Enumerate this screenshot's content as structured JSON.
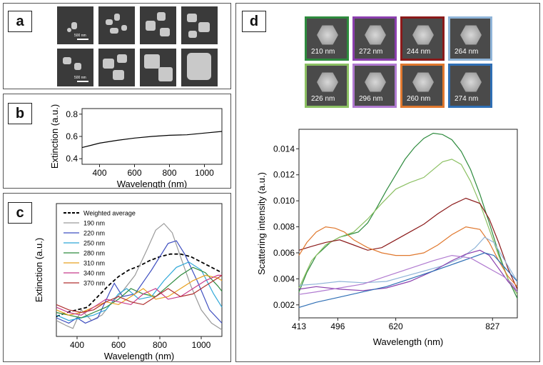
{
  "panels": {
    "a": {
      "label": "a",
      "scale_bar_top": "500 nm",
      "scale_bar_bottom": "500 nm"
    },
    "b": {
      "label": "b"
    },
    "c": {
      "label": "c"
    },
    "d": {
      "label": "d",
      "tiles": [
        {
          "size": "210 nm",
          "color": "#2e8b3e"
        },
        {
          "size": "272 nm",
          "color": "#8b3fae"
        },
        {
          "size": "244 nm",
          "color": "#8b1a1a"
        },
        {
          "size": "264 nm",
          "color": "#8fb4d8"
        },
        {
          "size": "226 nm",
          "color": "#8cc063"
        },
        {
          "size": "296 nm",
          "color": "#b07ad0"
        },
        {
          "size": "260 nm",
          "color": "#e0782e"
        },
        {
          "size": "274 nm",
          "color": "#2f6fb5"
        }
      ]
    }
  },
  "chart_data": [
    {
      "panel": "b",
      "type": "line",
      "title": "",
      "xlabel": "Wavelength (nm)",
      "ylabel": "Extinction (a.u.)",
      "xlim": [
        300,
        1100
      ],
      "ylim": [
        0.35,
        0.85
      ],
      "xticks": [
        400,
        600,
        800,
        1000
      ],
      "yticks": [
        0.4,
        0.6,
        0.8
      ],
      "ytick_labels": [
        "0.4",
        "0.6",
        "0.8"
      ],
      "series": [
        {
          "name": "extinction",
          "color": "#000000",
          "x": [
            300,
            350,
            400,
            500,
            600,
            700,
            800,
            900,
            1000,
            1100
          ],
          "y": [
            0.5,
            0.52,
            0.54,
            0.565,
            0.585,
            0.6,
            0.61,
            0.615,
            0.63,
            0.645
          ]
        }
      ]
    },
    {
      "panel": "c",
      "type": "line",
      "title": "",
      "xlabel": "Wavelength (nm)",
      "ylabel": "Extinction (a.u.)",
      "xlim": [
        300,
        1100
      ],
      "ylim": [
        0,
        1
      ],
      "xticks": [
        400,
        600,
        800,
        1000
      ],
      "legend": [
        "Weighted average",
        "190 nm",
        "220 nm",
        "250 nm",
        "280 nm",
        "310 nm",
        "340 nm",
        "370 nm"
      ],
      "series": [
        {
          "name": "Weighted average",
          "color": "#000000",
          "dashed": true,
          "x": [
            300,
            350,
            400,
            450,
            500,
            550,
            600,
            650,
            700,
            750,
            800,
            850,
            900,
            950,
            1000,
            1050,
            1100
          ],
          "y": [
            0.15,
            0.18,
            0.2,
            0.22,
            0.3,
            0.38,
            0.45,
            0.5,
            0.53,
            0.57,
            0.6,
            0.62,
            0.62,
            0.6,
            0.56,
            0.52,
            0.48
          ]
        },
        {
          "name": "190 nm",
          "color": "#9a9a9a",
          "x": [
            300,
            350,
            380,
            420,
            470,
            520,
            560,
            620,
            680,
            740,
            780,
            820,
            860,
            900,
            950,
            1000,
            1050,
            1100
          ],
          "y": [
            0.12,
            0.08,
            0.06,
            0.2,
            0.12,
            0.16,
            0.24,
            0.34,
            0.46,
            0.66,
            0.8,
            0.85,
            0.78,
            0.6,
            0.38,
            0.2,
            0.1,
            0.05
          ]
        },
        {
          "name": "220 nm",
          "color": "#3f4fc0",
          "x": [
            300,
            360,
            400,
            440,
            500,
            560,
            580,
            620,
            680,
            760,
            840,
            880,
            920,
            980,
            1040,
            1100
          ],
          "y": [
            0.14,
            0.1,
            0.14,
            0.1,
            0.14,
            0.34,
            0.4,
            0.3,
            0.32,
            0.5,
            0.7,
            0.72,
            0.62,
            0.42,
            0.2,
            0.1
          ]
        },
        {
          "name": "250 nm",
          "color": "#2fa8d8",
          "x": [
            300,
            360,
            420,
            480,
            540,
            600,
            640,
            700,
            760,
            820,
            880,
            940,
            1000,
            1060,
            1100
          ],
          "y": [
            0.16,
            0.12,
            0.14,
            0.16,
            0.2,
            0.32,
            0.36,
            0.28,
            0.3,
            0.42,
            0.52,
            0.56,
            0.5,
            0.32,
            0.22
          ]
        },
        {
          "name": "280 nm",
          "color": "#2e8b3e",
          "x": [
            300,
            360,
            420,
            480,
            540,
            600,
            660,
            720,
            780,
            840,
            900,
            960,
            1020,
            1080,
            1100
          ],
          "y": [
            0.18,
            0.16,
            0.14,
            0.18,
            0.22,
            0.28,
            0.36,
            0.32,
            0.3,
            0.38,
            0.46,
            0.52,
            0.48,
            0.38,
            0.34
          ]
        },
        {
          "name": "310 nm",
          "color": "#e8a020",
          "x": [
            300,
            360,
            420,
            480,
            540,
            600,
            660,
            720,
            780,
            840,
            900,
            960,
            1020,
            1080,
            1100
          ],
          "y": [
            0.2,
            0.16,
            0.18,
            0.22,
            0.26,
            0.24,
            0.3,
            0.36,
            0.28,
            0.3,
            0.36,
            0.42,
            0.46,
            0.44,
            0.42
          ]
        },
        {
          "name": "340 nm",
          "color": "#c83a8a",
          "x": [
            300,
            360,
            420,
            480,
            540,
            600,
            660,
            720,
            780,
            840,
            900,
            960,
            1020,
            1080,
            1100
          ],
          "y": [
            0.22,
            0.18,
            0.16,
            0.22,
            0.28,
            0.26,
            0.24,
            0.32,
            0.36,
            0.28,
            0.3,
            0.36,
            0.42,
            0.46,
            0.46
          ]
        },
        {
          "name": "370 nm",
          "color": "#b03030",
          "x": [
            300,
            360,
            420,
            480,
            540,
            600,
            660,
            720,
            780,
            840,
            900,
            960,
            1020,
            1080,
            1100
          ],
          "y": [
            0.24,
            0.2,
            0.18,
            0.2,
            0.26,
            0.3,
            0.26,
            0.24,
            0.3,
            0.36,
            0.3,
            0.32,
            0.38,
            0.44,
            0.46
          ]
        }
      ]
    },
    {
      "panel": "d",
      "type": "line",
      "title": "",
      "xlabel": "Wavelength (nm)",
      "ylabel": "Scattering intensity (a.u.)",
      "xlim": [
        413,
        880
      ],
      "ylim": [
        0.001,
        0.0155
      ],
      "xticks": [
        413,
        496,
        620,
        827
      ],
      "xtick_positions": [
        413,
        496,
        620,
        827
      ],
      "yticks": [
        0.002,
        0.004,
        0.006,
        0.008,
        0.01,
        0.012,
        0.014
      ],
      "ytick_labels": [
        "0.002",
        "0.004",
        "0.006",
        "0.008",
        "0.010",
        "0.012",
        "0.014"
      ],
      "series": [
        {
          "name": "210 nm",
          "color": "#2e8b3e",
          "x": [
            413,
            430,
            450,
            480,
            500,
            520,
            540,
            560,
            580,
            600,
            620,
            640,
            660,
            680,
            700,
            720,
            740,
            760,
            780,
            800,
            820,
            840,
            860,
            880
          ],
          "y": [
            0.003,
            0.0045,
            0.0058,
            0.0068,
            0.0072,
            0.0074,
            0.0076,
            0.0083,
            0.0095,
            0.0108,
            0.012,
            0.0132,
            0.0141,
            0.0148,
            0.0152,
            0.0151,
            0.0147,
            0.0138,
            0.0124,
            0.0105,
            0.0083,
            0.006,
            0.004,
            0.0025
          ]
        },
        {
          "name": "226 nm",
          "color": "#8cc063",
          "x": [
            413,
            440,
            470,
            500,
            530,
            560,
            590,
            620,
            650,
            680,
            700,
            720,
            740,
            760,
            780,
            800,
            820,
            840,
            860,
            880
          ],
          "y": [
            0.0033,
            0.0054,
            0.0066,
            0.0072,
            0.0076,
            0.0086,
            0.0098,
            0.0109,
            0.0114,
            0.0118,
            0.0124,
            0.013,
            0.0132,
            0.0128,
            0.0115,
            0.0098,
            0.0078,
            0.0058,
            0.004,
            0.0028
          ]
        },
        {
          "name": "244 nm",
          "color": "#8b1a1a",
          "x": [
            413,
            440,
            470,
            500,
            530,
            560,
            590,
            620,
            650,
            680,
            710,
            740,
            770,
            800,
            820,
            840,
            860,
            880
          ],
          "y": [
            0.0062,
            0.0065,
            0.0068,
            0.007,
            0.0066,
            0.0062,
            0.0064,
            0.007,
            0.0076,
            0.0082,
            0.009,
            0.0097,
            0.0102,
            0.0098,
            0.0086,
            0.0068,
            0.0048,
            0.0032
          ]
        },
        {
          "name": "260 nm",
          "color": "#e0782e",
          "x": [
            413,
            430,
            450,
            470,
            490,
            510,
            530,
            560,
            590,
            620,
            650,
            680,
            710,
            740,
            770,
            800,
            820,
            840,
            860,
            880
          ],
          "y": [
            0.0058,
            0.0068,
            0.0076,
            0.008,
            0.0079,
            0.0076,
            0.007,
            0.0064,
            0.006,
            0.0058,
            0.0058,
            0.006,
            0.0066,
            0.0074,
            0.008,
            0.0078,
            0.0068,
            0.0054,
            0.0042,
            0.0034
          ]
        },
        {
          "name": "264 nm",
          "color": "#8fb4d8",
          "x": [
            413,
            450,
            500,
            550,
            600,
            640,
            680,
            720,
            760,
            790,
            810,
            830,
            850,
            870,
            880
          ],
          "y": [
            0.0035,
            0.0036,
            0.0038,
            0.0037,
            0.0038,
            0.0042,
            0.0046,
            0.005,
            0.0056,
            0.0064,
            0.0072,
            0.0068,
            0.0056,
            0.0044,
            0.0038
          ]
        },
        {
          "name": "272 nm",
          "color": "#8b3fae",
          "x": [
            413,
            450,
            500,
            550,
            600,
            650,
            700,
            740,
            770,
            800,
            820,
            840,
            860,
            880
          ],
          "y": [
            0.0032,
            0.0034,
            0.0032,
            0.0031,
            0.0033,
            0.0038,
            0.0046,
            0.0054,
            0.0059,
            0.0062,
            0.0058,
            0.0048,
            0.0038,
            0.003
          ]
        },
        {
          "name": "274 nm",
          "color": "#2f6fb5",
          "x": [
            413,
            450,
            500,
            550,
            600,
            650,
            700,
            740,
            780,
            810,
            830,
            850,
            870,
            880
          ],
          "y": [
            0.0018,
            0.0022,
            0.0026,
            0.003,
            0.0034,
            0.004,
            0.0046,
            0.0051,
            0.0056,
            0.006,
            0.0058,
            0.005,
            0.0042,
            0.0038
          ]
        },
        {
          "name": "296 nm",
          "color": "#b07ad0",
          "x": [
            413,
            450,
            500,
            550,
            600,
            650,
            700,
            740,
            780,
            810,
            830,
            850,
            870,
            880
          ],
          "y": [
            0.0028,
            0.003,
            0.0033,
            0.0036,
            0.0042,
            0.0048,
            0.0054,
            0.0058,
            0.0056,
            0.005,
            0.0046,
            0.0042,
            0.0036,
            0.003
          ]
        }
      ]
    }
  ]
}
